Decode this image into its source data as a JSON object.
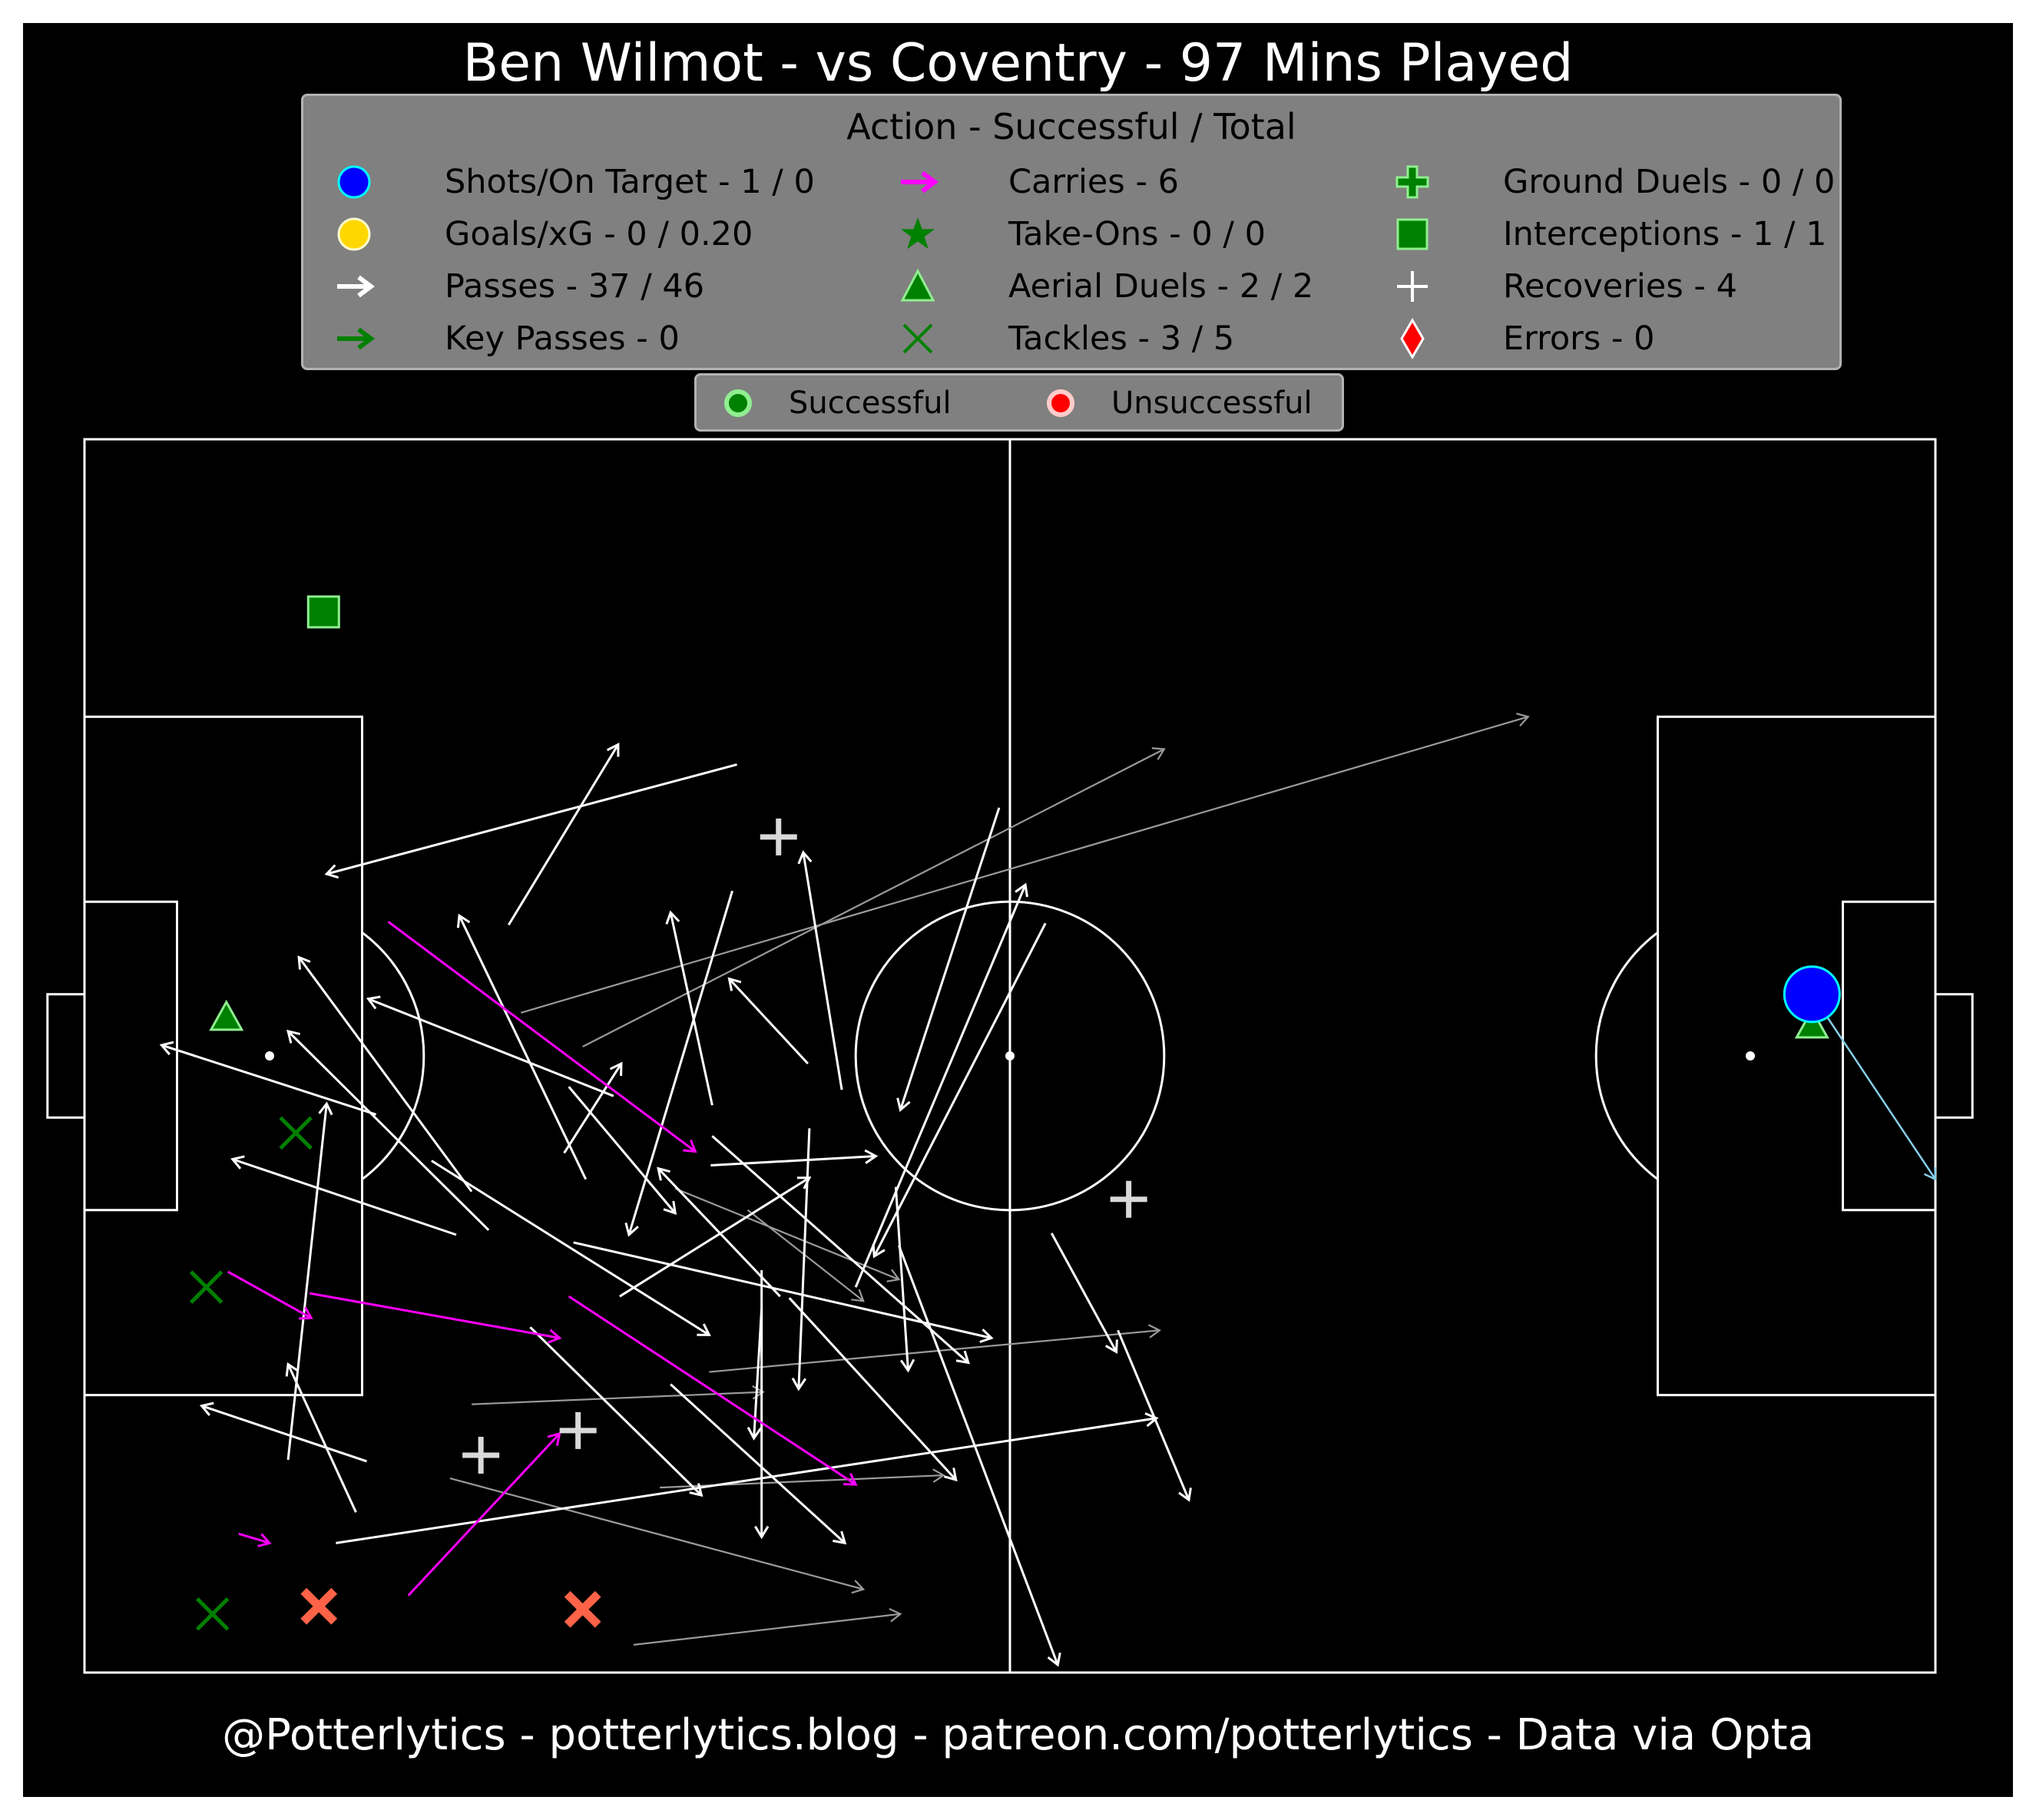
{
  "title": "Ben Wilmot - vs Coventry - 97 Mins Played",
  "footer": "@Potterlytics - potterlytics.blog - patreon.com/potterlytics - Data via Opta",
  "legend": {
    "title": "Action - Successful / Total",
    "items": [
      {
        "label": "Shots/On Target - 1 / 0",
        "icon": "circle",
        "color": "#0000ff",
        "edge": "#00ffff"
      },
      {
        "label": "Goals/xG - 0 / 0.20",
        "icon": "circle",
        "color": "#ffd700",
        "edge": "#fffacd"
      },
      {
        "label": "Passes - 37 / 46",
        "icon": "arrow",
        "color": "#ffffff"
      },
      {
        "label": "Key Passes - 0",
        "icon": "arrow",
        "color": "#008000"
      },
      {
        "label": "Carries - 6",
        "icon": "arrow",
        "color": "#ff00ff"
      },
      {
        "label": "Take-Ons - 0 / 0",
        "icon": "star",
        "color": "#008000"
      },
      {
        "label": "Aerial Duels - 2 / 2",
        "icon": "triangle",
        "color": "#008000",
        "edge": "#90ee90"
      },
      {
        "label": "Tackles - 3 / 5",
        "icon": "x",
        "color": "#008000"
      },
      {
        "label": "Ground Duels - 0 / 0",
        "icon": "plus-filled",
        "color": "#008000",
        "edge": "#90ee90"
      },
      {
        "label": "Interceptions - 1 / 1",
        "icon": "square",
        "color": "#008000",
        "edge": "#90ee90"
      },
      {
        "label": "Recoveries - 4",
        "icon": "plus",
        "color": "#ffffff"
      },
      {
        "label": "Errors - 0",
        "icon": "diamond",
        "color": "#ff0000",
        "edge": "#ffffff"
      }
    ]
  },
  "outcome_legend": {
    "successful": "Successful",
    "unsuccessful": "Unsuccessful",
    "successful_color": "#008000",
    "successful_edge": "#90ee90",
    "unsuccessful_color": "#ff0000",
    "unsuccessful_edge": "#ffcccb"
  },
  "chart_data": {
    "type": "scatter",
    "pitch": {
      "length": 120,
      "width": 80,
      "background": "#000000",
      "lines": "#ffffff"
    },
    "passes_successful": [
      [
        42.3,
        21.1,
        15.7,
        28.2
      ],
      [
        27.5,
        31.5,
        34.6,
        19.8
      ],
      [
        59.3,
        23.9,
        52.9,
        43.5
      ],
      [
        49.1,
        42.2,
        46.6,
        26.8
      ],
      [
        50.0,
        55.0,
        61.0,
        28.9
      ],
      [
        42.0,
        29.3,
        35.3,
        51.6
      ],
      [
        40.7,
        43.2,
        38.0,
        30.7
      ],
      [
        45.1,
        55.6,
        37.2,
        47.3
      ],
      [
        46.9,
        40.5,
        41.8,
        35.0
      ],
      [
        31.4,
        42.0,
        38.3,
        50.2
      ],
      [
        40.6,
        47.1,
        51.3,
        46.5
      ],
      [
        34.7,
        55.6,
        47.0,
        47.9
      ],
      [
        31.1,
        46.3,
        34.8,
        40.5
      ],
      [
        52.6,
        48.5,
        53.4,
        60.4
      ],
      [
        62.3,
        31.4,
        51.2,
        53.0
      ],
      [
        43.9,
        53.9,
        43.9,
        71.2
      ],
      [
        62.7,
        51.5,
        66.9,
        59.2
      ],
      [
        32.5,
        48.0,
        24.3,
        30.9
      ],
      [
        25.1,
        48.8,
        13.9,
        33.6
      ],
      [
        34.3,
        42.6,
        18.4,
        36.3
      ],
      [
        40.7,
        45.2,
        57.3,
        59.9
      ],
      [
        47.0,
        44.7,
        46.3,
        61.6
      ],
      [
        18.9,
        43.8,
        5.0,
        39.3
      ],
      [
        24.1,
        51.6,
        9.6,
        46.7
      ],
      [
        26.2,
        51.3,
        13.2,
        38.4
      ],
      [
        22.5,
        46.8,
        40.5,
        58.1
      ],
      [
        31.7,
        52.1,
        58.8,
        58.3
      ],
      [
        43.9,
        56.4,
        43.4,
        64.8
      ],
      [
        38.0,
        61.3,
        49.3,
        71.6
      ],
      [
        45.7,
        55.7,
        56.5,
        67.5
      ],
      [
        17.6,
        69.6,
        13.2,
        60.0
      ],
      [
        28.9,
        57.6,
        40.0,
        68.5
      ],
      [
        16.3,
        71.6,
        69.5,
        63.5
      ],
      [
        18.3,
        66.3,
        7.6,
        62.7
      ],
      [
        13.2,
        66.2,
        15.7,
        43.1
      ],
      [
        52.8,
        52.3,
        63.1,
        79.5
      ],
      [
        67.0,
        57.8,
        71.6,
        68.8
      ]
    ],
    "passes_unsuccessful": [
      [
        43.0,
        50.0,
        50.5,
        55.9
      ],
      [
        38.3,
        48.6,
        52.8,
        54.5
      ],
      [
        25.1,
        62.6,
        44.0,
        61.8
      ],
      [
        40.5,
        60.5,
        69.7,
        57.8
      ],
      [
        37.3,
        68.0,
        55.7,
        67.2
      ],
      [
        35.6,
        78.2,
        52.9,
        76.2
      ],
      [
        23.7,
        67.4,
        50.5,
        74.6
      ],
      [
        32.3,
        39.4,
        70.0,
        20.1
      ],
      [
        28.3,
        37.2,
        93.6,
        18.0
      ]
    ],
    "carries": [
      [
        19.7,
        31.3,
        39.6,
        46.2
      ],
      [
        9.3,
        54.0,
        14.7,
        57.0
      ],
      [
        14.6,
        55.4,
        30.8,
        58.3
      ],
      [
        31.4,
        55.6,
        50.0,
        67.8
      ],
      [
        21.0,
        75.0,
        30.8,
        64.5
      ],
      [
        10.0,
        71.0,
        12.0,
        71.6
      ]
    ],
    "shot": {
      "x": 112.0,
      "y": 36.0,
      "end_x": 120.0,
      "end_y": 48.0,
      "xG": 0.2
    },
    "aerial_duels": [
      [
        9.2,
        37.5
      ],
      [
        112.0,
        38.0
      ]
    ],
    "tackles_successful": [
      [
        13.7,
        45.0
      ],
      [
        7.9,
        55.0
      ],
      [
        8.3,
        76.2
      ]
    ],
    "tackles_unsuccessful": [
      [
        15.2,
        75.7
      ],
      [
        32.3,
        75.9
      ]
    ],
    "interceptions": [
      [
        15.5,
        11.2
      ]
    ],
    "recoveries": [
      [
        45.0,
        25.8
      ],
      [
        67.7,
        49.3
      ],
      [
        25.7,
        65.9
      ],
      [
        32.0,
        64.3
      ]
    ]
  }
}
